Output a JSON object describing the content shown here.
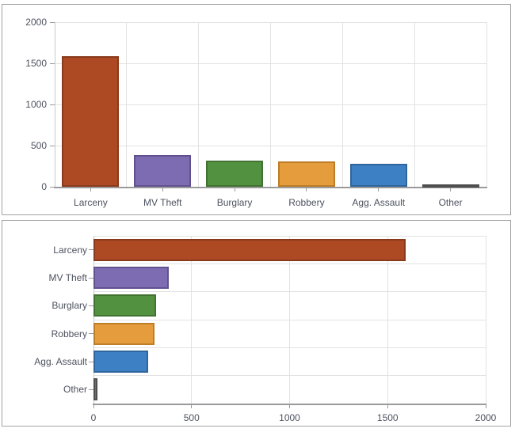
{
  "style": {
    "page_bg": "#ffffff",
    "panel_bg": "#ffffff",
    "panel_border": "#a2a2a2",
    "grid_color": "#e2e2e2",
    "axis_color": "#9a9a9a",
    "axis_light_color": "#c9c9c9",
    "tick_color": "#9a9a9a",
    "label_color": "#4d525f"
  },
  "chart_data": [
    {
      "type": "bar",
      "orientation": "vertical",
      "title": "",
      "xlabel": "",
      "ylabel": "",
      "categories": [
        "Larceny",
        "MV Theft",
        "Burglary",
        "Robbery",
        "Agg. Assault",
        "Other"
      ],
      "values": [
        1590,
        385,
        320,
        310,
        280,
        20
      ],
      "bar_fill_colors": [
        "#ae4a23",
        "#7d6cb2",
        "#529140",
        "#e49c3c",
        "#3e80c4",
        "#6f6f6f"
      ],
      "bar_border_colors": [
        "#8a3a1c",
        "#61518f",
        "#417232",
        "#bd7e27",
        "#30659c",
        "#4f4f4f"
      ],
      "ylim": [
        0,
        2000
      ],
      "yticks": [
        0,
        500,
        1000,
        1500,
        2000
      ],
      "grid": true,
      "legend": false
    },
    {
      "type": "bar",
      "orientation": "horizontal",
      "title": "",
      "xlabel": "",
      "ylabel": "",
      "categories": [
        "Larceny",
        "MV Theft",
        "Burglary",
        "Robbery",
        "Agg. Assault",
        "Other"
      ],
      "values": [
        1590,
        385,
        320,
        310,
        280,
        20
      ],
      "bar_fill_colors": [
        "#ae4a23",
        "#7d6cb2",
        "#529140",
        "#e49c3c",
        "#3e80c4",
        "#6f6f6f"
      ],
      "bar_border_colors": [
        "#8a3a1c",
        "#61518f",
        "#417232",
        "#bd7e27",
        "#30659c",
        "#4f4f4f"
      ],
      "xlim": [
        0,
        2000
      ],
      "xticks": [
        0,
        500,
        1000,
        1500,
        2000
      ],
      "grid": true,
      "legend": false
    }
  ]
}
